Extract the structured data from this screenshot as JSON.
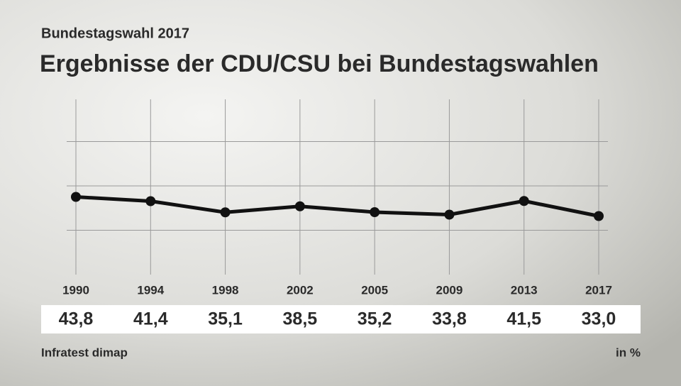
{
  "chart_data": {
    "type": "line",
    "supertitle": "Bundestagswahl 2017",
    "title": "Ergebnisse der CDU/CSU bei Bundestagswahlen",
    "categories": [
      "1990",
      "1994",
      "1998",
      "2002",
      "2005",
      "2009",
      "2013",
      "2017"
    ],
    "values": [
      43.8,
      41.4,
      35.1,
      38.5,
      35.2,
      33.8,
      41.5,
      33.0
    ],
    "value_labels": [
      "43,8",
      "41,4",
      "35,1",
      "38,5",
      "35,2",
      "33,8",
      "41,5",
      "33,0"
    ],
    "color": "#111111",
    "ylim": [
      0,
      100
    ],
    "yticks": [
      0,
      25,
      50,
      75,
      100
    ],
    "grid": true,
    "source": "Infratest dimap",
    "unit_note": "in %"
  }
}
